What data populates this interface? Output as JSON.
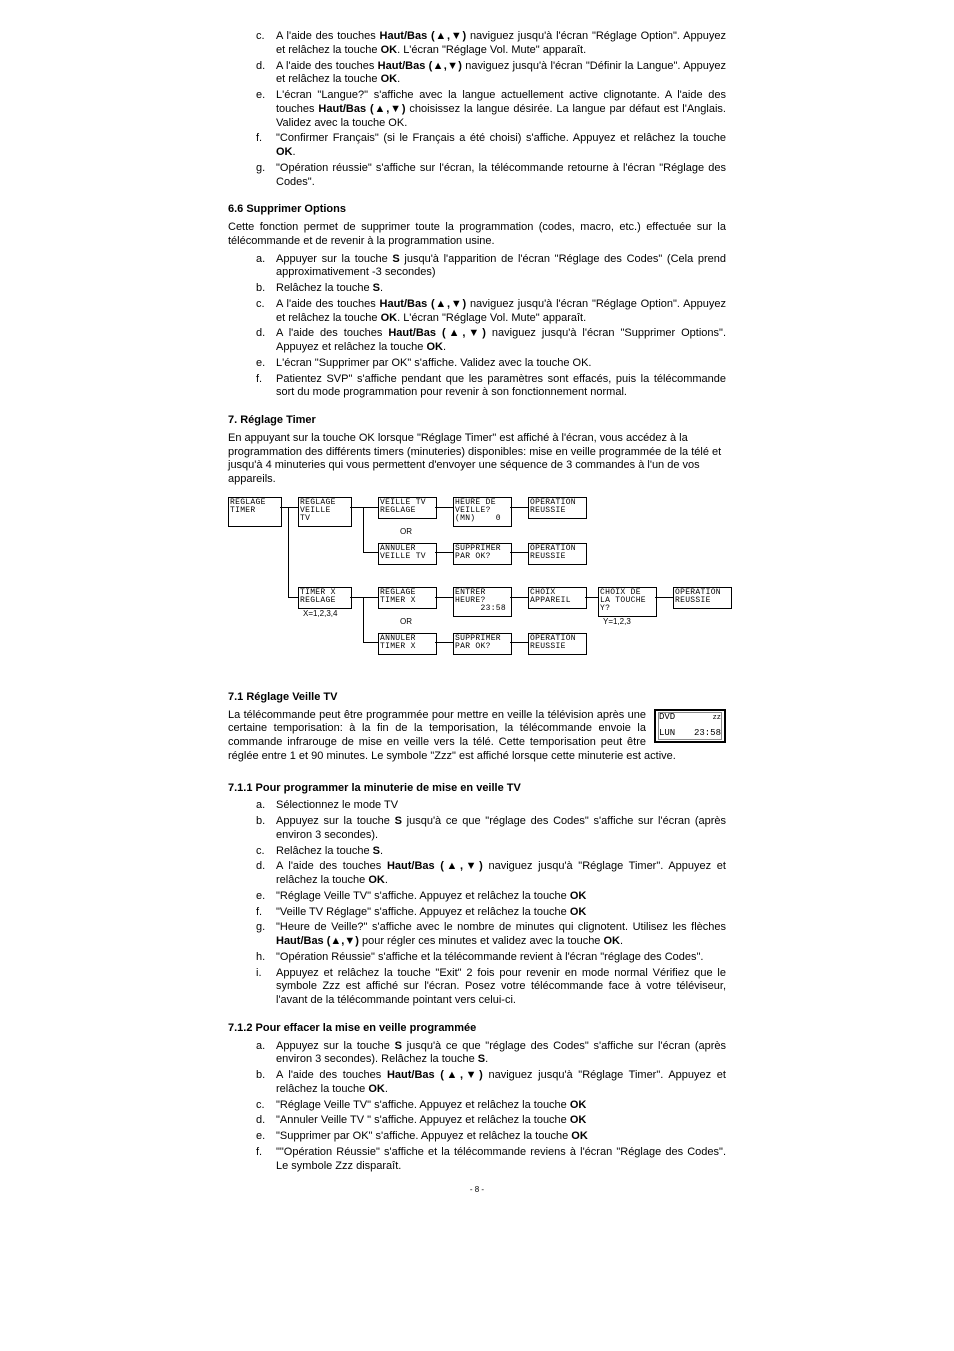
{
  "list1": {
    "c": "A l'aide des touches <b>Haut/Bas (▲,▼)</b> naviguez jusqu'à l'écran \"Réglage Option\". Appuyez et relâchez la touche <b>OK</b>. L'écran \"Réglage Vol. Mute\" apparaît.",
    "d": " A l'aide des touches <b>Haut/Bas (▲,▼)</b> naviguez jusqu'à l'écran \"Définir la Langue\". Appuyez et relâchez la touche <b>OK</b>.",
    "e": "L'écran \"Langue?\" s'affiche avec la langue actuellement active clignotante. A l'aide des touches <b>Haut/Bas (▲,▼)</b> choisissez la langue désirée. La langue par défaut est l'Anglais. Validez avec la touche OK.",
    "f": "\"Confirmer Français\" (si le Français a été choisi) s'affiche. Appuyez et relâchez la touche <b>OK</b>.",
    "g": "\"Opération réussie\" s'affiche sur l'écran, la télécommande retourne à l'écran \"Réglage des Codes\"."
  },
  "h66": "6.6 Supprimer Options",
  "p66": "Cette fonction permet de supprimer toute la programmation (codes, macro, etc.) effectuée sur la télécommande et de revenir à la programmation usine.",
  "list66": {
    "a": "Appuyer sur la touche <b>S</b> jusqu'à l'apparition de l'écran \"Réglage des Codes\" (Cela prend approximativement -3 secondes)",
    "b": "Relâchez la touche <b>S</b>.",
    "c": "A l'aide des touches <b>Haut/Bas (▲,▼)</b> naviguez jusqu'à l'écran \"Réglage Option\". Appuyez et relâchez la touche <b>OK</b>. L'écran \"Réglage Vol. Mute\" apparaît.",
    "d": " A l'aide des touches <b>Haut/Bas (▲,▼)</b> naviguez jusqu'à l'écran \"Supprimer Options\". Appuyez et relâchez la touche <b>OK</b>.",
    "e": "L'écran \"Supprimer par OK\" s'affiche. Validez avec la touche OK.",
    "f": "Patientez SVP\" s'affiche pendant que les paramètres sont effacés, puis la télécommande sort du mode programmation pour revenir à son fonctionnement normal."
  },
  "h7": "7. Réglage Timer",
  "p7": "En appuyant sur la touche OK lorsque \"Réglage Timer\" est affiché à l'écran, vous accédez à la programmation des différents timers (minuteries) disponibles: mise en veille programmée de la télé et jusqu'à 4 minuteries qui vous permettent d'envoyer une séquence de 3 commandes à l'un de vos appareils.",
  "diagram": {
    "row1": [
      "REGLAGE\nTIMER",
      "REGLAGE\nVEILLE\nTV",
      "VEILLE TV\nREGLAGE",
      "HEURE DE\nVEILLE?\n(MN)    0",
      "OPERATION\nREUSSIE"
    ],
    "or1": "OR",
    "row1b": [
      "ANNULER\nVEILLE TV",
      "SUPPRIMER\nPAR OK?",
      "OPERATION\nREUSSIE"
    ],
    "row2": [
      "TIMER X\nREGLAGE",
      "REGLAGE\nTIMER X",
      "ENTRER\nHEURE?\n     23:58",
      "CHOIX\nAPPAREIL",
      "CHOIX DE\nLA TOUCHE\nY?",
      "OPERATION\nREUSSIE"
    ],
    "or2": "OR",
    "row2b": [
      "ANNULER\nTIMER X",
      "SUPPRIMER\nPAR OK?",
      "OPERATION\nREUSSIE"
    ],
    "note_x": "X=1,2,3,4",
    "note_y": "Y=1,2,3"
  },
  "h71": "7.1 Réglage Veille TV",
  "p71": "La télécommande peut être programmée pour mettre en veille la télévision après une certaine temporisation: à la fin de la temporisation, la télécommande envoie la commande infrarouge de mise en veille vers la télé. Cette temporisation peut être réglée entre 1 et 90 minutes. Le symbole \"Zzz\" est affiché lorsque cette minuterie est active.",
  "lcd": {
    "tl": "DVD",
    "tr": "zz",
    "bl": "LUN",
    "br": "23:58"
  },
  "h711": "7.1.1 Pour programmer la minuterie de mise en veille TV",
  "list711": {
    "a": "Sélectionnez le mode TV",
    "b": "Appuyez sur la touche <b>S</b> jusqu'à ce que \"réglage des Codes\" s'affiche sur l'écran (après environ 3 secondes).",
    "c": "Relâchez la touche <b>S</b>.",
    "d": "A l'aide des touches <b>Haut/Bas (▲,▼)</b> naviguez jusqu'à \"Réglage Timer\". Appuyez et relâchez la touche <b>OK</b>.",
    "e": "\"Réglage Veille TV\" s'affiche. Appuyez et relâchez la touche <b>OK</b>",
    "f": "\"Veille TV Réglage\" s'affiche. Appuyez et relâchez la touche <b>OK</b>",
    "g": "\"Heure de Veille?\" s'affiche avec le nombre de minutes qui clignotent. Utilisez les flèches <b>Haut/Bas (▲,▼)</b> pour régler ces minutes et validez avec la touche <b>OK</b>.",
    "h": "\"Opération Réussie\" s'affiche et la télécommande revient à l'écran  \"réglage des Codes\".",
    "i": "Appuyez et relâchez la touche \"Exit\" 2 fois pour revenir en mode normal  Vérifiez que le symbole Zzz est affiché sur l'écran. Posez votre télécommande face à votre téléviseur, l'avant de la télécommande pointant vers celui-ci."
  },
  "h712": "7.1.2 Pour effacer la mise en veille programmée",
  "list712": {
    "a": "Appuyez sur la touche <b>S</b> jusqu'à ce que \"réglage des Codes\" s'affiche sur l'écran (après environ 3 secondes). Relâchez la touche <b>S</b>.",
    "b": "A l'aide des touches <b>Haut/Bas (▲,▼)</b> naviguez jusqu'à \"Réglage Timer\". Appuyez et relâchez la touche <b>OK</b>.",
    "c": "\"Réglage Veille TV\" s'affiche. Appuyez et relâchez la touche <b>OK</b>",
    "d": "\"Annuler Veille TV \" s'affiche. Appuyez et relâchez la touche <b>OK</b>",
    "e": "\"Supprimer par OK\" s'affiche. Appuyez et relâchez la touche <b>OK</b>",
    "f": "\"\"Opération Réussie\" s'affiche et la télécommande reviens à l'écran  \"Réglage des Codes\". Le symbole Zzz disparaît."
  },
  "pagenum": "- 8 -"
}
